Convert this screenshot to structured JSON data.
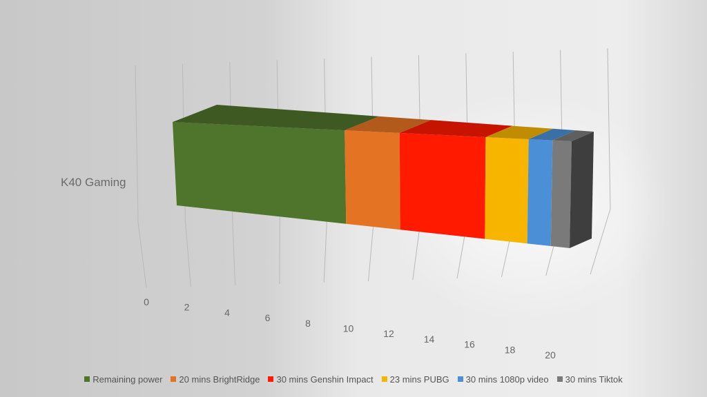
{
  "chart_data": {
    "type": "bar",
    "stacked": true,
    "orientation": "horizontal",
    "projection": "3d",
    "categories": [
      "K40 Gaming"
    ],
    "x_ticks": [
      "0",
      "2",
      "4",
      "6",
      "8",
      "10",
      "12",
      "14",
      "16",
      "18",
      "20"
    ],
    "xlim": [
      0,
      20
    ],
    "grid": true,
    "legend_position": "bottom",
    "series": [
      {
        "name": "Remaining power",
        "values": [
          7.2
        ],
        "color": "#4f742c"
      },
      {
        "name": "20 mins BrightRidge",
        "values": [
          2.3
        ],
        "color": "#e47423"
      },
      {
        "name": "30 mins Genshin Impact",
        "values": [
          3.6
        ],
        "color": "#ff1a00"
      },
      {
        "name": "23 mins PUBG",
        "values": [
          1.8
        ],
        "color": "#f7b500"
      },
      {
        "name": "30 mins 1080p video",
        "values": [
          1.0
        ],
        "color": "#4b8fd6"
      },
      {
        "name": "30 mins Tiktok",
        "values": [
          0.8
        ],
        "color": "#7a7a7a"
      }
    ]
  }
}
